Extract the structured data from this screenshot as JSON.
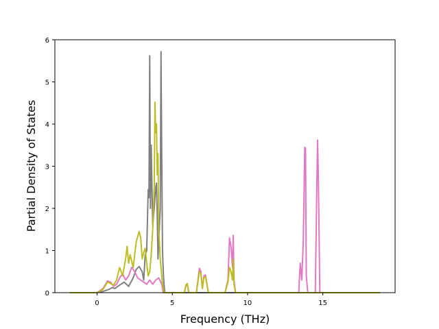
{
  "chart_data": {
    "type": "line",
    "title": "",
    "xlabel": "Frequency (THz)",
    "ylabel": "Partial Density of States",
    "xlim": [
      -2.8,
      19.8
    ],
    "ylim": [
      0,
      6
    ],
    "x_ticks": [
      0,
      5,
      10,
      15
    ],
    "y_ticks": [
      0,
      1,
      2,
      3,
      4,
      5,
      6
    ],
    "grid": false,
    "legend": "none",
    "series": [
      {
        "color": "#7f7f7f",
        "x": [
          -1.8,
          0.0,
          0.4,
          0.8,
          1.0,
          1.2,
          1.5,
          1.8,
          2.1,
          2.4,
          2.6,
          2.8,
          3.0,
          3.1,
          3.2,
          3.3,
          3.4,
          3.45,
          3.5,
          3.55,
          3.6,
          3.7,
          3.8,
          3.9,
          3.95,
          4.0,
          4.05,
          4.1,
          4.2,
          4.25,
          4.3,
          4.35,
          4.4,
          4.45,
          4.5,
          18.8
        ],
        "y": [
          0,
          0,
          0.03,
          0.08,
          0.12,
          0.1,
          0.18,
          0.25,
          0.15,
          0.35,
          0.55,
          0.62,
          0.5,
          0.3,
          0.9,
          1.0,
          2.45,
          2.25,
          5.62,
          2.0,
          3.5,
          1.6,
          2.0,
          2.5,
          2.6,
          1.8,
          0.8,
          1.2,
          2.0,
          5.72,
          3.2,
          1.0,
          0.5,
          0.2,
          0,
          0
        ]
      },
      {
        "color": "#e377c2",
        "x": [
          -1.8,
          0.0,
          0.4,
          0.7,
          0.9,
          1.1,
          1.3,
          1.5,
          1.7,
          1.9,
          2.1,
          2.3,
          2.5,
          2.7,
          2.9,
          3.1,
          3.3,
          3.5,
          3.7,
          3.9,
          4.1,
          4.3,
          4.4,
          5.8,
          5.9,
          6.0,
          6.1,
          6.6,
          6.8,
          6.9,
          7.0,
          7.1,
          7.2,
          7.3,
          7.4,
          8.5,
          8.7,
          8.8,
          8.9,
          9.0,
          9.05,
          9.1,
          9.2,
          13.4,
          13.5,
          13.6,
          13.7,
          13.8,
          13.85,
          13.9,
          14.0,
          14.5,
          14.6,
          14.65,
          14.7,
          14.8,
          18.8
        ],
        "y": [
          0,
          0,
          0.1,
          0.28,
          0.25,
          0.15,
          0.2,
          0.35,
          0.45,
          0.3,
          0.4,
          0.6,
          0.5,
          0.35,
          0.3,
          0.25,
          0.2,
          0.3,
          0.2,
          0.3,
          0.35,
          0.2,
          0,
          0,
          0.15,
          0.2,
          0,
          0,
          0.58,
          0.5,
          0.1,
          0.4,
          0.42,
          0.2,
          0,
          0,
          0.3,
          1.3,
          1.1,
          0.6,
          1.36,
          0.3,
          0,
          0,
          0.7,
          0.3,
          1.2,
          3.45,
          3.42,
          0.4,
          0,
          0,
          2.5,
          3.62,
          2.8,
          0,
          0
        ]
      },
      {
        "color": "#bcbd22",
        "x": [
          -1.8,
          0.0,
          0.4,
          0.7,
          0.9,
          1.1,
          1.3,
          1.5,
          1.7,
          1.9,
          2.0,
          2.1,
          2.2,
          2.4,
          2.6,
          2.8,
          2.9,
          3.0,
          3.1,
          3.2,
          3.3,
          3.4,
          3.5,
          3.6,
          3.7,
          3.8,
          3.85,
          3.9,
          3.95,
          4.0,
          4.05,
          4.1,
          4.2,
          4.3,
          4.35,
          4.4,
          4.45,
          5.8,
          5.9,
          6.0,
          6.1,
          6.6,
          6.8,
          6.9,
          7.0,
          7.1,
          7.2,
          7.3,
          7.4,
          8.5,
          8.7,
          8.8,
          8.9,
          9.0,
          9.05,
          9.1,
          9.2,
          18.8
        ],
        "y": [
          0,
          0,
          0.08,
          0.25,
          0.22,
          0.18,
          0.3,
          0.6,
          0.4,
          0.8,
          1.1,
          0.7,
          0.9,
          0.6,
          1.2,
          1.45,
          1.3,
          0.8,
          0.95,
          1.05,
          0.7,
          0.4,
          0.5,
          0.9,
          1.5,
          2.5,
          4.52,
          3.8,
          4.0,
          2.8,
          3.3,
          1.5,
          0.8,
          0.4,
          0.2,
          0.1,
          0,
          0,
          0.18,
          0.22,
          0,
          0,
          0.5,
          0.45,
          0.1,
          0.35,
          0.38,
          0.2,
          0,
          0,
          0.25,
          0.6,
          0.5,
          0.3,
          0.8,
          0.2,
          0,
          0
        ]
      }
    ]
  }
}
